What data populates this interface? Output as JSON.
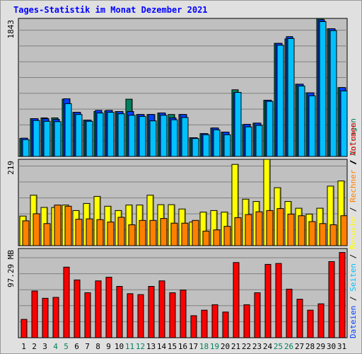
{
  "chart_title": "Tages-Statistik im Monat Dezember 2021",
  "colors": {
    "background": "#e0e0e0",
    "plot_bg": "#c0c0c0",
    "grid": "#808080",
    "title": "#0000ff",
    "weekday_label": "#000000",
    "weekend_label": "#00805c",
    "anfragen": "#008060",
    "dateien": "#0040ff",
    "seiten": "#00c0ff",
    "besuche": "#ffff00",
    "rechner": "#ff8000",
    "volumen": "#ff0000"
  },
  "chart_data": [
    {
      "type": "bar",
      "panel": "top",
      "categories": [
        "1",
        "2",
        "3",
        "4",
        "5",
        "6",
        "7",
        "8",
        "9",
        "10",
        "11",
        "12",
        "13",
        "14",
        "15",
        "16",
        "17",
        "18",
        "19",
        "20",
        "21",
        "22",
        "23",
        "24",
        "25",
        "26",
        "27",
        "28",
        "29",
        "30",
        "31"
      ],
      "weekend_days": [
        "4",
        "5",
        "11",
        "12",
        "18",
        "19",
        "25",
        "26"
      ],
      "ylabel": "1843",
      "ylim": [
        0,
        1843
      ],
      "series": [
        {
          "name": "Anfragen",
          "color_key": "anfragen",
          "values": [
            240,
            505,
            515,
            515,
            765,
            590,
            485,
            600,
            610,
            600,
            765,
            560,
            560,
            580,
            560,
            560,
            250,
            305,
            380,
            325,
            890,
            425,
            445,
            750,
            1510,
            1570,
            965,
            850,
            1843,
            1705,
            920
          ]
        },
        {
          "name": "Dateien",
          "color_key": "dateien",
          "values": [
            245,
            505,
            505,
            495,
            770,
            590,
            485,
            615,
            615,
            600,
            600,
            560,
            560,
            580,
            515,
            560,
            250,
            305,
            380,
            325,
            850,
            430,
            445,
            750,
            1510,
            1600,
            965,
            850,
            1825,
            1705,
            920
          ]
        },
        {
          "name": "Seiten",
          "color_key": "seiten",
          "values": [
            225,
            480,
            470,
            465,
            705,
            560,
            470,
            580,
            590,
            570,
            550,
            535,
            475,
            550,
            490,
            520,
            240,
            290,
            355,
            290,
            855,
            395,
            415,
            735,
            1485,
            1575,
            940,
            810,
            1800,
            1680,
            875
          ]
        }
      ],
      "legend": [
        "Anfragen",
        "Dateien",
        "Seiten"
      ]
    },
    {
      "type": "bar",
      "panel": "middle",
      "categories": [
        "1",
        "2",
        "3",
        "4",
        "5",
        "6",
        "7",
        "8",
        "9",
        "10",
        "11",
        "12",
        "13",
        "14",
        "15",
        "16",
        "17",
        "18",
        "19",
        "20",
        "21",
        "22",
        "23",
        "24",
        "25",
        "26",
        "27",
        "28",
        "29",
        "30",
        "31"
      ],
      "ylabel": "219",
      "ylim": [
        0,
        219
      ],
      "series": [
        {
          "name": "Besuche",
          "color_key": "besuche",
          "values": [
            75,
            128,
            97,
            97,
            103,
            89,
            107,
            125,
            100,
            89,
            103,
            103,
            128,
            104,
            104,
            93,
            60,
            85,
            89,
            85,
            206,
            118,
            112,
            219,
            147,
            112,
            95,
            80,
            95,
            151,
            164
          ]
        },
        {
          "name": "Rechner",
          "color_key": "rechner",
          "values": [
            63,
            81,
            56,
            103,
            100,
            67,
            68,
            66,
            60,
            72,
            53,
            64,
            64,
            69,
            57,
            57,
            64,
            37,
            40,
            49,
            71,
            79,
            86,
            89,
            94,
            80,
            76,
            61,
            56,
            53,
            76
          ]
        }
      ],
      "legend": [
        "Besuche",
        "Rechner"
      ]
    },
    {
      "type": "bar",
      "panel": "bottom",
      "categories": [
        "1",
        "2",
        "3",
        "4",
        "5",
        "6",
        "7",
        "8",
        "9",
        "10",
        "11",
        "12",
        "13",
        "14",
        "15",
        "16",
        "17",
        "18",
        "19",
        "20",
        "21",
        "22",
        "23",
        "24",
        "25",
        "26",
        "27",
        "28",
        "29",
        "30",
        "31"
      ],
      "ylabel": "97.29 MB",
      "ylim": [
        0,
        97.29
      ],
      "series": [
        {
          "name": "Volumen",
          "color_key": "volumen",
          "values": [
            20,
            51,
            43,
            44,
            77,
            63,
            49,
            62,
            66,
            56,
            48,
            47,
            56,
            62,
            49,
            52,
            24,
            30,
            36,
            28,
            82,
            36,
            49,
            80,
            81,
            53,
            42,
            30,
            37,
            83,
            93
          ]
        }
      ],
      "legend": [
        "Volumen"
      ]
    }
  ],
  "legend_labels": {
    "anfragen": "Anfragen",
    "dateien": "Dateien",
    "seiten": "Seiten",
    "besuche": "Besuche",
    "rechner": "Rechner",
    "volumen": "Volumen",
    "separator": "/"
  }
}
